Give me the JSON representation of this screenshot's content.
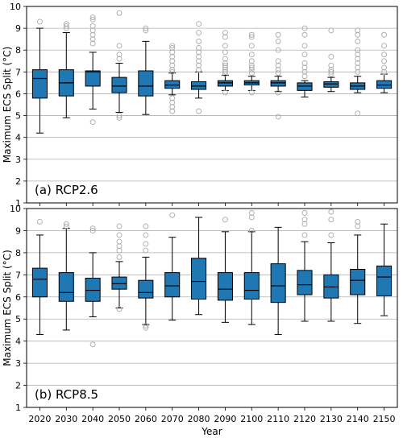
{
  "chart_data": [
    {
      "type": "box",
      "panel_label": "(a) RCP2.6",
      "ylabel": "Maximum ECS Split (°C)",
      "xlabel": "",
      "ylim": [
        1,
        10
      ],
      "yticks": [
        "1",
        "2",
        "3",
        "4",
        "5",
        "6",
        "7",
        "8",
        "9",
        "10"
      ],
      "grid": "horizontal",
      "box_color": "#1f77b4",
      "categories": [
        "2020",
        "2030",
        "2040",
        "2050",
        "2060",
        "2070",
        "2080",
        "2090",
        "2100",
        "2110",
        "2120",
        "2130",
        "2140",
        "2150"
      ],
      "boxes": [
        {
          "q1": 5.8,
          "median": 6.7,
          "q3": 7.1,
          "whislo": 4.2,
          "whishi": 9.0,
          "fliers": [
            9.3
          ]
        },
        {
          "q1": 5.9,
          "median": 6.5,
          "q3": 7.1,
          "whislo": 4.9,
          "whishi": 8.8,
          "fliers": [
            9.0,
            9.1,
            9.2
          ]
        },
        {
          "q1": 6.35,
          "median": 7.0,
          "q3": 7.05,
          "whislo": 5.3,
          "whishi": 7.9,
          "fliers": [
            4.7,
            8.3,
            8.5,
            8.7,
            8.9,
            9.1,
            9.4,
            9.5
          ]
        },
        {
          "q1": 6.05,
          "median": 6.35,
          "q3": 6.75,
          "whislo": 5.15,
          "whishi": 7.4,
          "fliers": [
            4.9,
            5.0,
            7.6,
            7.8,
            8.2,
            9.7
          ]
        },
        {
          "q1": 5.9,
          "median": 6.35,
          "q3": 7.05,
          "whislo": 5.05,
          "whishi": 8.4,
          "fliers": [
            8.9,
            9.0
          ]
        },
        {
          "q1": 6.25,
          "median": 6.4,
          "q3": 6.6,
          "whislo": 5.95,
          "whishi": 6.95,
          "fliers": [
            5.2,
            5.4,
            5.6,
            5.8,
            7.0,
            7.1,
            7.3,
            7.5,
            7.7,
            7.9,
            8.1,
            8.2
          ]
        },
        {
          "q1": 6.2,
          "median": 6.35,
          "q3": 6.55,
          "whislo": 5.8,
          "whishi": 7.0,
          "fliers": [
            5.2,
            7.1,
            7.3,
            7.5,
            7.7,
            7.9,
            8.1,
            8.4,
            8.8,
            9.2
          ]
        },
        {
          "q1": 6.35,
          "median": 6.5,
          "q3": 6.6,
          "whislo": 6.15,
          "whishi": 6.85,
          "fliers": [
            6.05,
            6.9,
            7.0,
            7.1,
            7.2,
            7.3,
            7.4,
            7.6,
            7.9,
            8.2,
            8.6,
            8.8
          ]
        },
        {
          "q1": 6.4,
          "median": 6.5,
          "q3": 6.6,
          "whislo": 6.15,
          "whishi": 6.8,
          "fliers": [
            6.05,
            6.95,
            7.1,
            7.2,
            7.3,
            7.5,
            7.8,
            8.2,
            8.6,
            8.7
          ]
        },
        {
          "q1": 6.35,
          "median": 6.5,
          "q3": 6.6,
          "whislo": 6.1,
          "whishi": 6.8,
          "fliers": [
            4.95,
            6.05,
            6.95,
            7.1,
            7.3,
            7.5,
            8.0,
            8.4,
            8.7
          ]
        },
        {
          "q1": 6.15,
          "median": 6.35,
          "q3": 6.5,
          "whislo": 5.85,
          "whishi": 6.6,
          "fliers": [
            6.8,
            7.0,
            7.2,
            7.4,
            7.8,
            8.2,
            8.7,
            9.0
          ]
        },
        {
          "q1": 6.3,
          "median": 6.45,
          "q3": 6.55,
          "whislo": 6.1,
          "whishi": 6.75,
          "fliers": [
            6.9,
            7.0,
            7.1,
            7.3,
            7.7,
            8.9
          ]
        },
        {
          "q1": 6.2,
          "median": 6.35,
          "q3": 6.5,
          "whislo": 6.05,
          "whishi": 6.8,
          "fliers": [
            5.1,
            7.0,
            7.2,
            7.4,
            7.6,
            7.8,
            8.0,
            8.4,
            8.7,
            8.9
          ]
        },
        {
          "q1": 6.25,
          "median": 6.4,
          "q3": 6.6,
          "whislo": 6.05,
          "whishi": 6.9,
          "fliers": [
            7.0,
            7.2,
            7.5,
            7.8,
            8.2,
            8.7
          ]
        }
      ]
    },
    {
      "type": "box",
      "panel_label": "(b) RCP8.5",
      "ylabel": "Maximum ECS Split (°C)",
      "xlabel": "Year",
      "ylim": [
        1,
        10
      ],
      "yticks": [
        "1",
        "2",
        "3",
        "4",
        "5",
        "6",
        "7",
        "8",
        "9",
        "10"
      ],
      "grid": "horizontal",
      "box_color": "#1f77b4",
      "categories": [
        "2020",
        "2030",
        "2040",
        "2050",
        "2060",
        "2070",
        "2080",
        "2090",
        "2100",
        "2110",
        "2120",
        "2130",
        "2140",
        "2150"
      ],
      "boxes": [
        {
          "q1": 6.0,
          "median": 6.8,
          "q3": 7.3,
          "whislo": 4.3,
          "whishi": 8.8,
          "fliers": [
            9.4
          ]
        },
        {
          "q1": 5.8,
          "median": 6.2,
          "q3": 7.1,
          "whislo": 4.5,
          "whishi": 9.1,
          "fliers": [
            9.2,
            9.3
          ]
        },
        {
          "q1": 5.8,
          "median": 6.3,
          "q3": 6.85,
          "whislo": 5.1,
          "whishi": 8.0,
          "fliers": [
            3.85,
            9.0,
            9.1
          ]
        },
        {
          "q1": 6.35,
          "median": 6.6,
          "q3": 6.9,
          "whislo": 5.5,
          "whishi": 7.6,
          "fliers": [
            5.45,
            7.8,
            8.1,
            8.3,
            8.5,
            8.8,
            9.2
          ]
        },
        {
          "q1": 5.95,
          "median": 6.2,
          "q3": 6.75,
          "whislo": 4.75,
          "whishi": 7.8,
          "fliers": [
            4.6,
            4.7,
            8.1,
            8.4,
            8.8,
            9.2
          ]
        },
        {
          "q1": 6.0,
          "median": 6.5,
          "q3": 7.1,
          "whislo": 4.95,
          "whishi": 8.7,
          "fliers": [
            9.7
          ]
        },
        {
          "q1": 5.9,
          "median": 6.7,
          "q3": 7.75,
          "whislo": 5.2,
          "whishi": 9.6,
          "fliers": []
        },
        {
          "q1": 5.85,
          "median": 6.35,
          "q3": 7.1,
          "whislo": 4.85,
          "whishi": 8.95,
          "fliers": [
            9.5
          ]
        },
        {
          "q1": 5.9,
          "median": 6.3,
          "q3": 7.1,
          "whislo": 4.75,
          "whishi": 8.95,
          "fliers": [
            9.0,
            9.6,
            9.8
          ]
        },
        {
          "q1": 5.75,
          "median": 6.5,
          "q3": 7.5,
          "whislo": 4.3,
          "whishi": 9.15,
          "fliers": []
        },
        {
          "q1": 6.1,
          "median": 6.55,
          "q3": 7.2,
          "whislo": 4.9,
          "whishi": 8.5,
          "fliers": [
            8.8,
            9.3,
            9.5,
            9.8
          ]
        },
        {
          "q1": 5.95,
          "median": 6.45,
          "q3": 7.0,
          "whislo": 4.9,
          "whishi": 8.45,
          "fliers": [
            8.8,
            9.5,
            9.85
          ]
        },
        {
          "q1": 6.1,
          "median": 6.75,
          "q3": 7.25,
          "whislo": 4.8,
          "whishi": 8.8,
          "fliers": [
            9.2,
            9.4
          ]
        },
        {
          "q1": 6.05,
          "median": 6.9,
          "q3": 7.4,
          "whislo": 5.15,
          "whishi": 9.3,
          "fliers": []
        }
      ]
    }
  ]
}
